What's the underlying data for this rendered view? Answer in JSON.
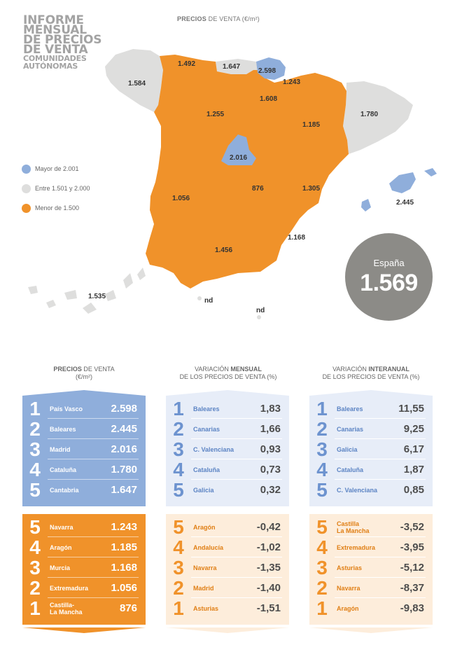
{
  "report_title": {
    "lines": [
      "INFORME",
      "MENSUAL",
      "DE PRECIOS",
      "DE VENTA"
    ],
    "subtitle_lines": [
      "COMUNIDADES",
      "AUTÓNOMAS"
    ]
  },
  "map": {
    "title_bold": "PRECIOS",
    "title_rest": " DE VENTA (€/m²)",
    "region_values": {
      "galicia": "1.584",
      "asturias": "1.492",
      "cantabria": "1.647",
      "pais_vasco": "2.598",
      "navarra": "1.243",
      "la_rioja": "1.608",
      "castilla_leon": "1.255",
      "aragon": "1.185",
      "cataluna": "1.780",
      "madrid": "2.016",
      "castilla_la_mancha": "876",
      "valencia": "1.305",
      "extremadura": "1.056",
      "andalucia": "1.456",
      "murcia": "1.168",
      "baleares": "2.445",
      "canarias": "1.535",
      "ceuta": "nd",
      "melilla": "nd"
    },
    "colors": {
      "high": "#8faedb",
      "mid": "#dededd",
      "low": "#f0922a"
    }
  },
  "legend": {
    "items": [
      {
        "label": "Mayor de 2.001",
        "color": "#8faedb"
      },
      {
        "label": "Entre 1.501 y 2.000",
        "color": "#dededd"
      },
      {
        "label": "Menor de 1.500",
        "color": "#f0922a"
      }
    ]
  },
  "spain": {
    "label": "España",
    "value": "1.569"
  },
  "columns": {
    "prices": {
      "title_bold": "PRECIOS",
      "title_rest": " DE VENTA",
      "title_line2": "(€/m²)",
      "top": [
        {
          "rank": "1",
          "name": "País Vasco",
          "value": "2.598"
        },
        {
          "rank": "2",
          "name": "Baleares",
          "value": "2.445"
        },
        {
          "rank": "3",
          "name": "Madrid",
          "value": "2.016"
        },
        {
          "rank": "4",
          "name": "Cataluña",
          "value": "1.780"
        },
        {
          "rank": "5",
          "name": "Cantabria",
          "value": "1.647"
        }
      ],
      "bottom": [
        {
          "rank": "5",
          "name": "Navarra",
          "value": "1.243"
        },
        {
          "rank": "4",
          "name": "Aragón",
          "value": "1.185"
        },
        {
          "rank": "3",
          "name": "Murcia",
          "value": "1.168"
        },
        {
          "rank": "2",
          "name": "Extremadura",
          "value": "1.056"
        },
        {
          "rank": "1",
          "name": "Castilla-\nLa Mancha",
          "value": "876"
        }
      ]
    },
    "monthly": {
      "title_pre": "VARIACIÓN ",
      "title_bold": "MENSUAL",
      "title_line2": "DE LOS PRECIOS DE VENTA (%)",
      "top": [
        {
          "rank": "1",
          "name": "Baleares",
          "value": "1,83"
        },
        {
          "rank": "2",
          "name": "Canarias",
          "value": "1,66"
        },
        {
          "rank": "3",
          "name": "C. Valenciana",
          "value": "0,93"
        },
        {
          "rank": "4",
          "name": "Cataluña",
          "value": "0,73"
        },
        {
          "rank": "5",
          "name": "Galicia",
          "value": "0,32"
        }
      ],
      "bottom": [
        {
          "rank": "5",
          "name": "Aragón",
          "value": "-0,42"
        },
        {
          "rank": "4",
          "name": "Andalucía",
          "value": "-1,02"
        },
        {
          "rank": "3",
          "name": "Navarra",
          "value": "-1,35"
        },
        {
          "rank": "2",
          "name": "Madrid",
          "value": "-1,40"
        },
        {
          "rank": "1",
          "name": "Asturias",
          "value": "-1,51"
        }
      ]
    },
    "yearly": {
      "title_pre": "VARIACIÓN ",
      "title_bold": "INTERANUAL",
      "title_line2": "DE LOS PRECIOS DE VENTA (%)",
      "top": [
        {
          "rank": "1",
          "name": "Baleares",
          "value": "11,55"
        },
        {
          "rank": "2",
          "name": "Canarias",
          "value": "9,25"
        },
        {
          "rank": "3",
          "name": "Galicia",
          "value": "6,17"
        },
        {
          "rank": "4",
          "name": "Cataluña",
          "value": "1,87"
        },
        {
          "rank": "5",
          "name": "C. Valenciana",
          "value": "0,85"
        }
      ],
      "bottom": [
        {
          "rank": "5",
          "name": "Castilla\nLa Mancha",
          "value": "-3,52"
        },
        {
          "rank": "4",
          "name": "Extremadura",
          "value": "-3,95"
        },
        {
          "rank": "3",
          "name": "Asturias",
          "value": "-5,12"
        },
        {
          "rank": "2",
          "name": "Navarra",
          "value": "-8,37"
        },
        {
          "rank": "1",
          "name": "Aragón",
          "value": "-9,83"
        }
      ]
    }
  }
}
